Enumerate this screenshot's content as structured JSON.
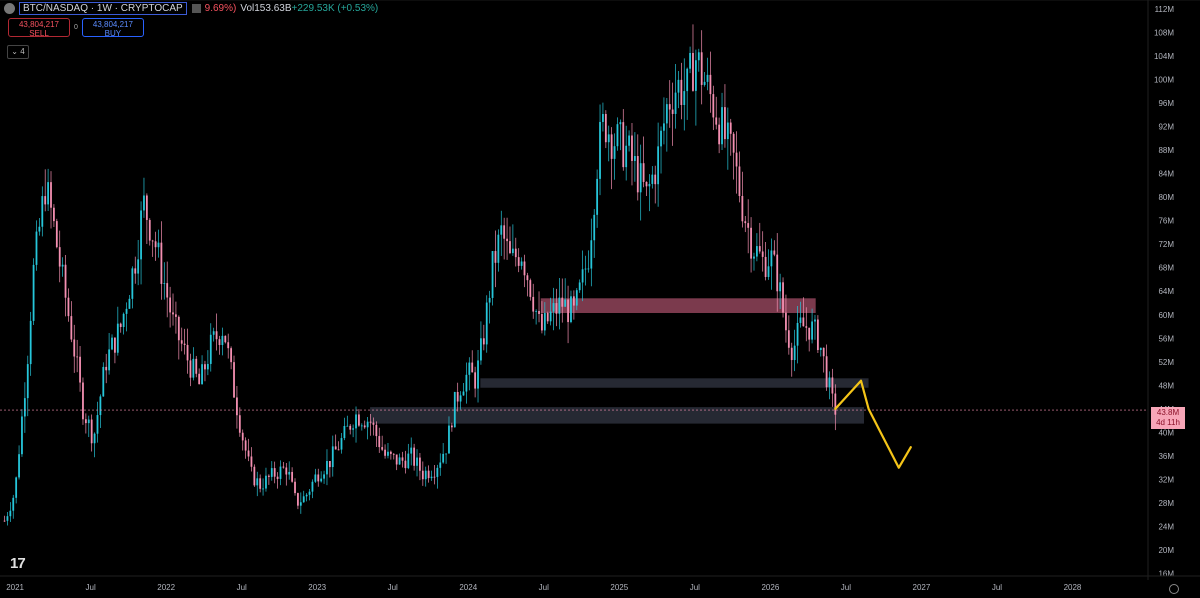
{
  "header": {
    "symbol": "BTC/NASDAQ · 1W · CRYPTOCAP",
    "change_pct": "9.69%)",
    "volume": "Vol153.63B",
    "volume_change": "+229.53K (+0.53%)"
  },
  "trade": {
    "sell_price": "43,804,217",
    "sell_label": "SELL",
    "spread": "0",
    "buy_price": "43,804,217",
    "buy_label": "BUY"
  },
  "indicator_count": "4",
  "price_label": {
    "value": "43.8M",
    "countdown": "4d 11h"
  },
  "colors": {
    "up": "#26c6da",
    "down": "#f48fb1",
    "zone_red": "#e06a8c",
    "zone_gray": "#2a2e39",
    "projection": "#f5c518"
  },
  "chart_data": {
    "type": "candlestick",
    "y_ticks": [
      "112M",
      "108M",
      "104M",
      "100M",
      "96M",
      "92M",
      "88M",
      "84M",
      "80M",
      "76M",
      "72M",
      "68M",
      "64M",
      "60M",
      "56M",
      "52M",
      "48M",
      "44M",
      "40M",
      "36M",
      "32M",
      "28M",
      "24M",
      "20M",
      "16M"
    ],
    "y_values": [
      112,
      108,
      104,
      100,
      96,
      92,
      88,
      84,
      80,
      76,
      72,
      68,
      64,
      60,
      56,
      52,
      48,
      44,
      40,
      36,
      32,
      28,
      24,
      20,
      16
    ],
    "ylim": [
      15.6,
      113.5
    ],
    "x_ticks": [
      {
        "label": "2021",
        "t": 2021.0
      },
      {
        "label": "Jul",
        "t": 2021.5
      },
      {
        "label": "2022",
        "t": 2022.0
      },
      {
        "label": "Jul",
        "t": 2022.5
      },
      {
        "label": "2023",
        "t": 2023.0
      },
      {
        "label": "Jul",
        "t": 2023.5
      },
      {
        "label": "2024",
        "t": 2024.0
      },
      {
        "label": "Jul",
        "t": 2024.5
      },
      {
        "label": "2025",
        "t": 2025.0
      },
      {
        "label": "Jul",
        "t": 2025.5
      },
      {
        "label": "2026",
        "t": 2026.0
      },
      {
        "label": "Jul",
        "t": 2026.5
      },
      {
        "label": "2027",
        "t": 2027.0
      },
      {
        "label": "Jul",
        "t": 2027.5
      },
      {
        "label": "2028",
        "t": 2028.0
      }
    ],
    "xlim": [
      2020.9,
      2028.5
    ],
    "close_path": [
      [
        2020.93,
        25
      ],
      [
        2021.0,
        30
      ],
      [
        2021.08,
        52
      ],
      [
        2021.12,
        67
      ],
      [
        2021.2,
        82
      ],
      [
        2021.25,
        76
      ],
      [
        2021.3,
        68
      ],
      [
        2021.38,
        56
      ],
      [
        2021.45,
        44
      ],
      [
        2021.52,
        39
      ],
      [
        2021.6,
        52
      ],
      [
        2021.7,
        58
      ],
      [
        2021.8,
        70
      ],
      [
        2021.85,
        79
      ],
      [
        2021.92,
        73
      ],
      [
        2022.0,
        64
      ],
      [
        2022.05,
        58
      ],
      [
        2022.15,
        52
      ],
      [
        2022.22,
        48
      ],
      [
        2022.3,
        55
      ],
      [
        2022.38,
        58
      ],
      [
        2022.45,
        47
      ],
      [
        2022.5,
        40
      ],
      [
        2022.56,
        33
      ],
      [
        2022.62,
        31
      ],
      [
        2022.72,
        33
      ],
      [
        2022.8,
        34
      ],
      [
        2022.86,
        28
      ],
      [
        2022.92,
        29
      ],
      [
        2023.0,
        33
      ],
      [
        2023.08,
        35
      ],
      [
        2023.17,
        39
      ],
      [
        2023.25,
        43
      ],
      [
        2023.35,
        42
      ],
      [
        2023.45,
        36
      ],
      [
        2023.55,
        35
      ],
      [
        2023.62,
        36
      ],
      [
        2023.7,
        33
      ],
      [
        2023.78,
        34
      ],
      [
        2023.86,
        38
      ],
      [
        2023.9,
        44
      ],
      [
        2023.95,
        48
      ],
      [
        2024.0,
        50
      ],
      [
        2024.05,
        49
      ],
      [
        2024.1,
        56
      ],
      [
        2024.16,
        68
      ],
      [
        2024.22,
        74
      ],
      [
        2024.28,
        69
      ],
      [
        2024.35,
        71
      ],
      [
        2024.42,
        64
      ],
      [
        2024.48,
        57
      ],
      [
        2024.55,
        60
      ],
      [
        2024.62,
        62
      ],
      [
        2024.7,
        60
      ],
      [
        2024.76,
        66
      ],
      [
        2024.8,
        71
      ],
      [
        2024.86,
        88
      ],
      [
        2024.9,
        93
      ],
      [
        2024.96,
        90
      ],
      [
        2025.05,
        88
      ],
      [
        2025.12,
        84
      ],
      [
        2025.18,
        80
      ],
      [
        2025.25,
        86
      ],
      [
        2025.32,
        96
      ],
      [
        2025.38,
        99
      ],
      [
        2025.45,
        98
      ],
      [
        2025.5,
        104
      ],
      [
        2025.56,
        100
      ],
      [
        2025.62,
        96
      ],
      [
        2025.7,
        90
      ],
      [
        2025.76,
        86
      ],
      [
        2025.82,
        78
      ],
      [
        2025.88,
        72
      ],
      [
        2025.95,
        69
      ],
      [
        2026.0,
        70
      ],
      [
        2026.05,
        66
      ],
      [
        2026.1,
        58
      ],
      [
        2026.15,
        54
      ],
      [
        2026.2,
        58
      ],
      [
        2026.26,
        58
      ],
      [
        2026.32,
        56
      ],
      [
        2026.37,
        50
      ],
      [
        2026.41,
        45
      ],
      [
        2026.43,
        44
      ]
    ],
    "zones": [
      {
        "name": "resistance",
        "t0": 2024.48,
        "t1": 2026.3,
        "y0": 60.3,
        "y1": 62.8,
        "color": "#e06a8c"
      },
      {
        "name": "support-1",
        "t0": 2024.08,
        "t1": 2026.65,
        "y0": 47.6,
        "y1": 49.2,
        "color": "#2a2e39"
      },
      {
        "name": "support-2",
        "t0": 2023.35,
        "t1": 2026.62,
        "y0": 41.5,
        "y1": 44.3,
        "color": "#2a2e39"
      }
    ],
    "last_price": 43.8,
    "projection": [
      [
        2026.43,
        44
      ],
      [
        2026.6,
        48.8
      ],
      [
        2026.65,
        44
      ],
      [
        2026.72,
        40.5
      ],
      [
        2026.85,
        34
      ],
      [
        2026.93,
        37.5
      ]
    ]
  }
}
